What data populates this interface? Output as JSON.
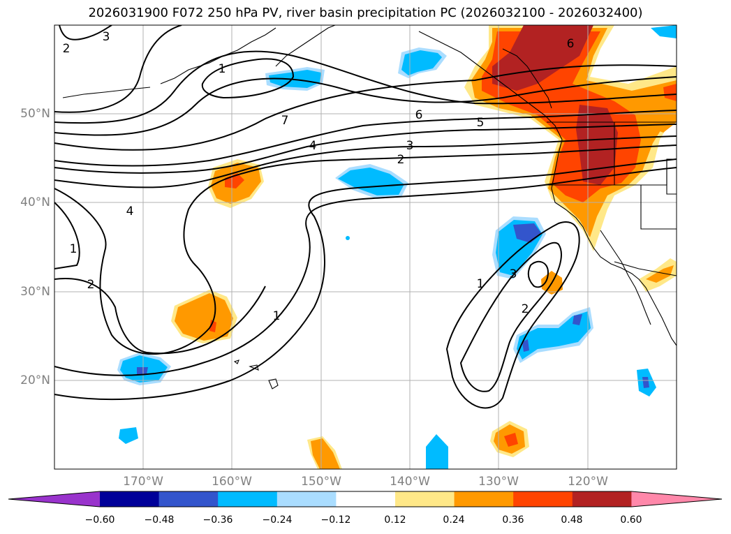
{
  "title": "2026031900 F072 250 hPa PV, river basin precipitation PC (2026032100 - 2026032400)",
  "lat_labels": [
    "50°N",
    "40°N",
    "30°N",
    "20°N"
  ],
  "lon_labels": [
    "170°W",
    "160°W",
    "150°W",
    "140°W",
    "130°W",
    "120°W"
  ],
  "contour_labels": [
    "7",
    "6",
    "5",
    "4",
    "3",
    "2",
    "1",
    "3",
    "4",
    "1",
    "2",
    "2",
    "1",
    "3",
    "2",
    "1",
    "6"
  ],
  "colorbar": {
    "tick_labels": [
      "−0.60",
      "−0.48",
      "−0.36",
      "−0.24",
      "−0.12",
      "0.12",
      "0.24",
      "0.36",
      "0.48",
      "0.60"
    ],
    "colors": [
      "#9933cc",
      "#000099",
      "#3355cc",
      "#00bbff",
      "#aaddff",
      "#ffffff",
      "#ffe888",
      "#ff9900",
      "#ff4400",
      "#b22222",
      "#ff88aa"
    ]
  },
  "colors": {
    "contour": "#000000",
    "grid": "#b0b0b0",
    "coast": "#000000"
  }
}
